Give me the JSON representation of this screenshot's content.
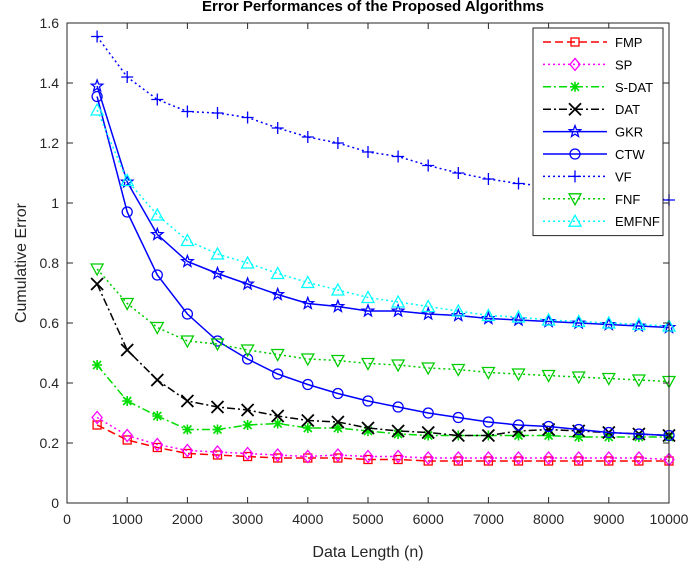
{
  "chart_data": {
    "type": "line",
    "title": "Error Performances of the Proposed Algorithms",
    "xlabel": "Data Length (n)",
    "ylabel": "Cumulative Error",
    "xlim": [
      0,
      10000
    ],
    "ylim": [
      0,
      1.6
    ],
    "xticks": [
      0,
      1000,
      2000,
      3000,
      4000,
      5000,
      6000,
      7000,
      8000,
      9000,
      10000
    ],
    "yticks": [
      0,
      0.2,
      0.4,
      0.6,
      0.8,
      1,
      1.2,
      1.4,
      1.6
    ],
    "xtick_labels": [
      "0",
      "1000",
      "2000",
      "3000",
      "4000",
      "5000",
      "6000",
      "7000",
      "8000",
      "9000",
      "10000"
    ],
    "ytick_labels": [
      "0",
      "0.2",
      "0.4",
      "0.6",
      "0.8",
      "1",
      "1.2",
      "1.4",
      "1.6"
    ],
    "grid": false,
    "legend_position": "top-right",
    "x": [
      500,
      1000,
      1500,
      2000,
      2500,
      3000,
      3500,
      4000,
      4500,
      5000,
      5500,
      6000,
      6500,
      7000,
      7500,
      8000,
      8500,
      9000,
      9500,
      10000
    ],
    "series": [
      {
        "name": "FMP",
        "color": "#ff0000",
        "dash": "dashed",
        "marker": "square",
        "values": [
          0.26,
          0.21,
          0.185,
          0.165,
          0.16,
          0.155,
          0.15,
          0.15,
          0.15,
          0.145,
          0.145,
          0.14,
          0.14,
          0.14,
          0.14,
          0.14,
          0.14,
          0.14,
          0.14,
          0.14
        ]
      },
      {
        "name": "SP",
        "color": "#ff00ff",
        "dash": "dotted",
        "marker": "diamond",
        "values": [
          0.285,
          0.225,
          0.195,
          0.175,
          0.17,
          0.165,
          0.16,
          0.155,
          0.16,
          0.155,
          0.155,
          0.15,
          0.15,
          0.15,
          0.15,
          0.15,
          0.15,
          0.15,
          0.15,
          0.145
        ]
      },
      {
        "name": "S-DAT",
        "color": "#00dd00",
        "dash": "dashdot",
        "marker": "asterisk",
        "values": [
          0.46,
          0.34,
          0.29,
          0.245,
          0.245,
          0.26,
          0.265,
          0.25,
          0.25,
          0.24,
          0.23,
          0.225,
          0.225,
          0.225,
          0.225,
          0.225,
          0.22,
          0.22,
          0.22,
          0.22
        ]
      },
      {
        "name": "DAT",
        "color": "#000000",
        "dash": "dashdot",
        "marker": "x",
        "values": [
          0.73,
          0.51,
          0.41,
          0.34,
          0.32,
          0.31,
          0.29,
          0.275,
          0.27,
          0.25,
          0.24,
          0.235,
          0.225,
          0.225,
          0.24,
          0.245,
          0.24,
          0.235,
          0.23,
          0.225
        ]
      },
      {
        "name": "GKR",
        "color": "#0000ff",
        "dash": "solid",
        "marker": "star",
        "values": [
          1.39,
          1.07,
          0.895,
          0.805,
          0.765,
          0.73,
          0.695,
          0.665,
          0.655,
          0.64,
          0.64,
          0.63,
          0.625,
          0.615,
          0.61,
          0.605,
          0.6,
          0.595,
          0.59,
          0.585
        ]
      },
      {
        "name": "CTW",
        "color": "#0000ff",
        "dash": "solid",
        "marker": "circle",
        "values": [
          1.355,
          0.97,
          0.76,
          0.63,
          0.54,
          0.48,
          0.43,
          0.395,
          0.365,
          0.34,
          0.32,
          0.3,
          0.285,
          0.27,
          0.26,
          0.255,
          0.245,
          0.235,
          0.23,
          0.225
        ]
      },
      {
        "name": "VF",
        "color": "#0000ff",
        "dash": "dotted",
        "marker": "plus",
        "values": [
          1.555,
          1.42,
          1.345,
          1.305,
          1.3,
          1.285,
          1.25,
          1.22,
          1.2,
          1.17,
          1.155,
          1.125,
          1.1,
          1.08,
          1.065,
          1.055,
          1.045,
          1.03,
          1.02,
          1.01
        ]
      },
      {
        "name": "FNF",
        "color": "#00cc00",
        "dash": "dotted",
        "marker": "triangle-down",
        "values": [
          0.78,
          0.665,
          0.585,
          0.54,
          0.53,
          0.51,
          0.495,
          0.48,
          0.475,
          0.465,
          0.46,
          0.45,
          0.445,
          0.435,
          0.43,
          0.425,
          0.42,
          0.415,
          0.41,
          0.405
        ]
      },
      {
        "name": "EMFNF",
        "color": "#00ffff",
        "dash": "dotted",
        "marker": "triangle-up",
        "values": [
          1.31,
          1.075,
          0.96,
          0.875,
          0.83,
          0.8,
          0.765,
          0.735,
          0.71,
          0.685,
          0.67,
          0.655,
          0.64,
          0.625,
          0.62,
          0.61,
          0.605,
          0.6,
          0.595,
          0.59
        ]
      }
    ]
  }
}
